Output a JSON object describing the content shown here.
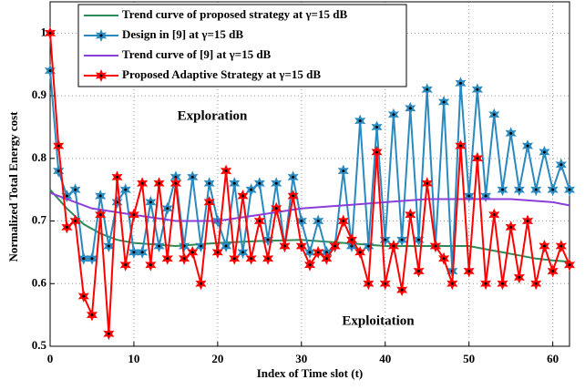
{
  "chart_data": {
    "type": "line",
    "xlabel": "Index of Time slot (t)",
    "ylabel": "Normalized Total Energy cost",
    "xlim": [
      0,
      62
    ],
    "ylim": [
      0.5,
      1.05
    ],
    "xticks": [
      0,
      10,
      20,
      30,
      40,
      50,
      60
    ],
    "yticks": [
      0.5,
      0.6,
      0.7,
      0.8,
      0.9,
      1
    ],
    "grid": true,
    "legend": "upper left",
    "series": [
      {
        "name": "Trend curve of proposed strategy at γ=15 dB",
        "color": "#2e8b57",
        "marker": false,
        "x": [
          0,
          2,
          4,
          6,
          8,
          10,
          15,
          20,
          25,
          30,
          35,
          40,
          45,
          50,
          52,
          54,
          56,
          58,
          60,
          62
        ],
        "values": [
          0.75,
          0.72,
          0.695,
          0.68,
          0.67,
          0.665,
          0.66,
          0.665,
          0.668,
          0.67,
          0.665,
          0.66,
          0.66,
          0.66,
          0.655,
          0.65,
          0.645,
          0.64,
          0.637,
          0.635
        ]
      },
      {
        "name": "Design in [9] at γ=15 dB",
        "color": "#2a8ac0",
        "marker": true,
        "x": [
          0,
          1,
          2,
          3,
          4,
          5,
          6,
          7,
          8,
          9,
          10,
          11,
          12,
          13,
          14,
          15,
          16,
          17,
          18,
          19,
          20,
          21,
          22,
          23,
          24,
          25,
          26,
          27,
          28,
          29,
          30,
          31,
          32,
          33,
          34,
          35,
          36,
          37,
          38,
          39,
          40,
          41,
          42,
          43,
          44,
          45,
          46,
          47,
          48,
          49,
          50,
          51,
          52,
          53,
          54,
          55,
          56,
          57,
          58,
          59,
          60,
          61,
          62
        ],
        "values": [
          0.94,
          0.78,
          0.74,
          0.75,
          0.64,
          0.64,
          0.74,
          0.66,
          0.73,
          0.75,
          0.65,
          0.65,
          0.73,
          0.66,
          0.72,
          0.77,
          0.66,
          0.77,
          0.66,
          0.76,
          0.7,
          0.66,
          0.76,
          0.65,
          0.75,
          0.76,
          0.67,
          0.76,
          0.66,
          0.77,
          0.7,
          0.65,
          0.7,
          0.65,
          0.66,
          0.78,
          0.66,
          0.86,
          0.66,
          0.85,
          0.67,
          0.87,
          0.67,
          0.88,
          0.67,
          0.91,
          0.66,
          0.89,
          0.62,
          0.92,
          0.74,
          0.91,
          0.74,
          0.87,
          0.75,
          0.84,
          0.75,
          0.82,
          0.75,
          0.81,
          0.75,
          0.79,
          0.75
        ]
      },
      {
        "name": "Trend curve of [9] at γ=15 dB",
        "color": "#8b3fd9",
        "marker": false,
        "x": [
          0,
          5,
          10,
          15,
          20,
          25,
          30,
          35,
          40,
          45,
          50,
          55,
          60,
          62
        ],
        "values": [
          0.745,
          0.72,
          0.71,
          0.7,
          0.7,
          0.71,
          0.72,
          0.725,
          0.73,
          0.735,
          0.735,
          0.735,
          0.73,
          0.725
        ]
      },
      {
        "name": "Proposed Adaptive Strategy at γ=15 dB",
        "color": "#ff0000",
        "marker": true,
        "x": [
          0,
          1,
          2,
          3,
          4,
          5,
          6,
          7,
          8,
          9,
          10,
          11,
          12,
          13,
          14,
          15,
          16,
          17,
          18,
          19,
          20,
          21,
          22,
          23,
          24,
          25,
          26,
          27,
          28,
          29,
          30,
          31,
          32,
          33,
          34,
          35,
          36,
          37,
          38,
          39,
          40,
          41,
          42,
          43,
          44,
          45,
          46,
          47,
          48,
          49,
          50,
          51,
          52,
          53,
          54,
          55,
          56,
          57,
          58,
          59,
          60,
          61,
          62
        ],
        "values": [
          1.0,
          0.82,
          0.69,
          0.7,
          0.58,
          0.55,
          0.71,
          0.52,
          0.77,
          0.63,
          0.71,
          0.76,
          0.63,
          0.76,
          0.64,
          0.76,
          0.64,
          0.65,
          0.6,
          0.73,
          0.65,
          0.78,
          0.64,
          0.74,
          0.64,
          0.7,
          0.64,
          0.72,
          0.66,
          0.74,
          0.66,
          0.63,
          0.65,
          0.64,
          0.66,
          0.7,
          0.67,
          0.65,
          0.6,
          0.81,
          0.6,
          0.66,
          0.59,
          0.71,
          0.62,
          0.76,
          0.66,
          0.64,
          0.6,
          0.82,
          0.62,
          0.8,
          0.6,
          0.71,
          0.6,
          0.69,
          0.61,
          0.7,
          0.6,
          0.66,
          0.62,
          0.66,
          0.63
        ]
      }
    ],
    "annotations": [
      "Exploration",
      "Exploitation"
    ]
  }
}
